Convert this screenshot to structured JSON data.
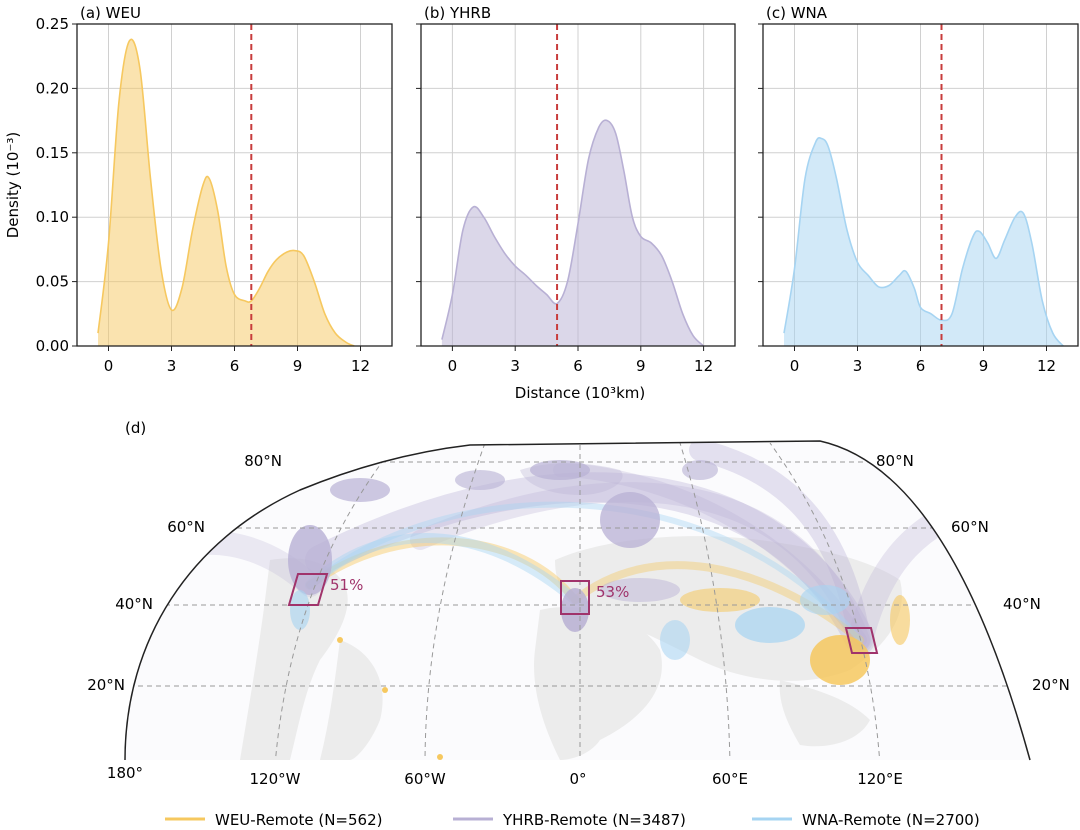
{
  "chart_data": [
    {
      "type": "area",
      "panel_title": "(a) WEU",
      "ylabel": "Density (10⁻³)",
      "xlabel": "",
      "xlim": [
        -1.5,
        13.5
      ],
      "ylim": [
        0,
        0.25
      ],
      "xticks": [
        0,
        3,
        6,
        9,
        12
      ],
      "yticks": [
        0.0,
        0.05,
        0.1,
        0.15,
        0.2,
        0.25
      ],
      "ytick_labels": [
        "0.00",
        "0.05",
        "0.10",
        "0.15",
        "0.20",
        "0.25"
      ],
      "color": "#f6c85f",
      "threshold": 6.8,
      "x": [
        -0.5,
        0,
        0.5,
        1.0,
        1.5,
        2.0,
        2.5,
        3.0,
        3.5,
        4.0,
        4.5,
        4.8,
        5.2,
        5.6,
        6.0,
        6.5,
        6.8,
        7.2,
        7.6,
        8.0,
        8.5,
        8.9,
        9.3,
        9.8,
        10.3,
        10.8,
        11.3,
        11.7
      ],
      "y": [
        0.01,
        0.08,
        0.19,
        0.237,
        0.215,
        0.13,
        0.06,
        0.028,
        0.045,
        0.09,
        0.125,
        0.13,
        0.105,
        0.062,
        0.04,
        0.035,
        0.035,
        0.045,
        0.058,
        0.067,
        0.073,
        0.074,
        0.07,
        0.05,
        0.025,
        0.01,
        0.003,
        0.0
      ]
    },
    {
      "type": "area",
      "panel_title": "(b) YHRB",
      "ylabel": "",
      "xlabel": "Distance (10³km)",
      "xlim": [
        -1.5,
        13.5
      ],
      "ylim": [
        0,
        0.25
      ],
      "xticks": [
        0,
        3,
        6,
        9,
        12
      ],
      "color": "#b8b0d4",
      "threshold": 5.0,
      "x": [
        -0.5,
        0,
        0.5,
        1.0,
        1.5,
        2.0,
        2.5,
        3.0,
        3.5,
        4.0,
        4.5,
        5.0,
        5.5,
        6.0,
        6.5,
        7.0,
        7.4,
        7.8,
        8.2,
        8.6,
        9.0,
        9.5,
        10.0,
        10.5,
        11.0,
        11.5,
        12.0
      ],
      "y": [
        0.005,
        0.04,
        0.09,
        0.108,
        0.1,
        0.085,
        0.072,
        0.062,
        0.055,
        0.047,
        0.04,
        0.033,
        0.05,
        0.095,
        0.145,
        0.17,
        0.175,
        0.165,
        0.135,
        0.1,
        0.085,
        0.08,
        0.07,
        0.05,
        0.025,
        0.008,
        0.0
      ]
    },
    {
      "type": "area",
      "panel_title": "(c) WNA",
      "ylabel": "",
      "xlabel": "",
      "xlim": [
        -1.5,
        13.5
      ],
      "ylim": [
        0,
        0.25
      ],
      "xticks": [
        0,
        3,
        6,
        9,
        12
      ],
      "color": "#a6d4f2",
      "threshold": 7.0,
      "x": [
        -0.5,
        0,
        0.5,
        1.0,
        1.3,
        1.6,
        2.0,
        2.5,
        3.0,
        3.5,
        4.0,
        4.5,
        5.0,
        5.3,
        5.7,
        6.0,
        6.5,
        7.0,
        7.5,
        8.0,
        8.5,
        8.8,
        9.2,
        9.6,
        10.0,
        10.5,
        10.9,
        11.3,
        11.8,
        12.3,
        12.8
      ],
      "y": [
        0.01,
        0.06,
        0.13,
        0.158,
        0.161,
        0.155,
        0.13,
        0.09,
        0.065,
        0.055,
        0.046,
        0.047,
        0.055,
        0.058,
        0.045,
        0.03,
        0.025,
        0.02,
        0.025,
        0.06,
        0.085,
        0.089,
        0.08,
        0.068,
        0.082,
        0.1,
        0.103,
        0.08,
        0.035,
        0.01,
        0.0
      ]
    }
  ],
  "map": {
    "panel_title": "(d)",
    "lat_labels": [
      "80°N",
      "60°N",
      "40°N",
      "20°N"
    ],
    "lon_labels": [
      "180°",
      "120°W",
      "60°W",
      "0°",
      "60°E",
      "120°E"
    ],
    "regions": [
      {
        "name": "WNA",
        "percent": "51%",
        "color": "#a0336b"
      },
      {
        "name": "WEU",
        "percent": "53%",
        "color": "#a0336b"
      },
      {
        "name": "YHRB",
        "percent": "",
        "color": "#a0336b"
      }
    ],
    "legend": [
      {
        "label": "WEU-Remote (N=562)",
        "color": "#f6c85f"
      },
      {
        "label": "YHRB-Remote (N=3487)",
        "color": "#b8b0d4"
      },
      {
        "label": "WNA-Remote (N=2700)",
        "color": "#a6d4f2"
      }
    ]
  }
}
